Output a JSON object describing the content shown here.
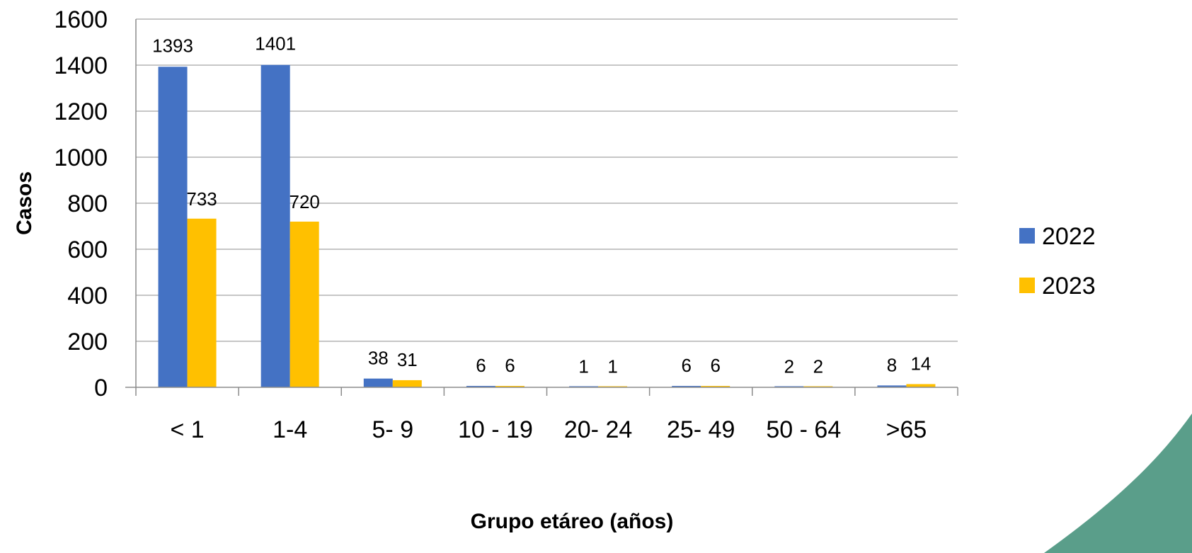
{
  "chart_data": {
    "type": "bar",
    "categories": [
      "< 1",
      "1-4",
      "5- 9",
      "10 - 19",
      "20- 24",
      "25- 49",
      "50 - 64",
      ">65"
    ],
    "series": [
      {
        "name": "2022",
        "values": [
          1393,
          1401,
          38,
          6,
          1,
          6,
          2,
          8
        ],
        "color": "#4472C4"
      },
      {
        "name": "2023",
        "values": [
          733,
          720,
          31,
          6,
          1,
          6,
          2,
          14
        ],
        "color": "#FFC000"
      }
    ],
    "xlabel": "Grupo etáreo (años)",
    "ylabel": "Casos",
    "ylim": [
      0,
      1600
    ],
    "yticks": [
      0,
      200,
      400,
      600,
      800,
      1000,
      1200,
      1400,
      1600
    ],
    "grid": true,
    "legend": "right",
    "decoration_color": "#5A9E8A"
  }
}
